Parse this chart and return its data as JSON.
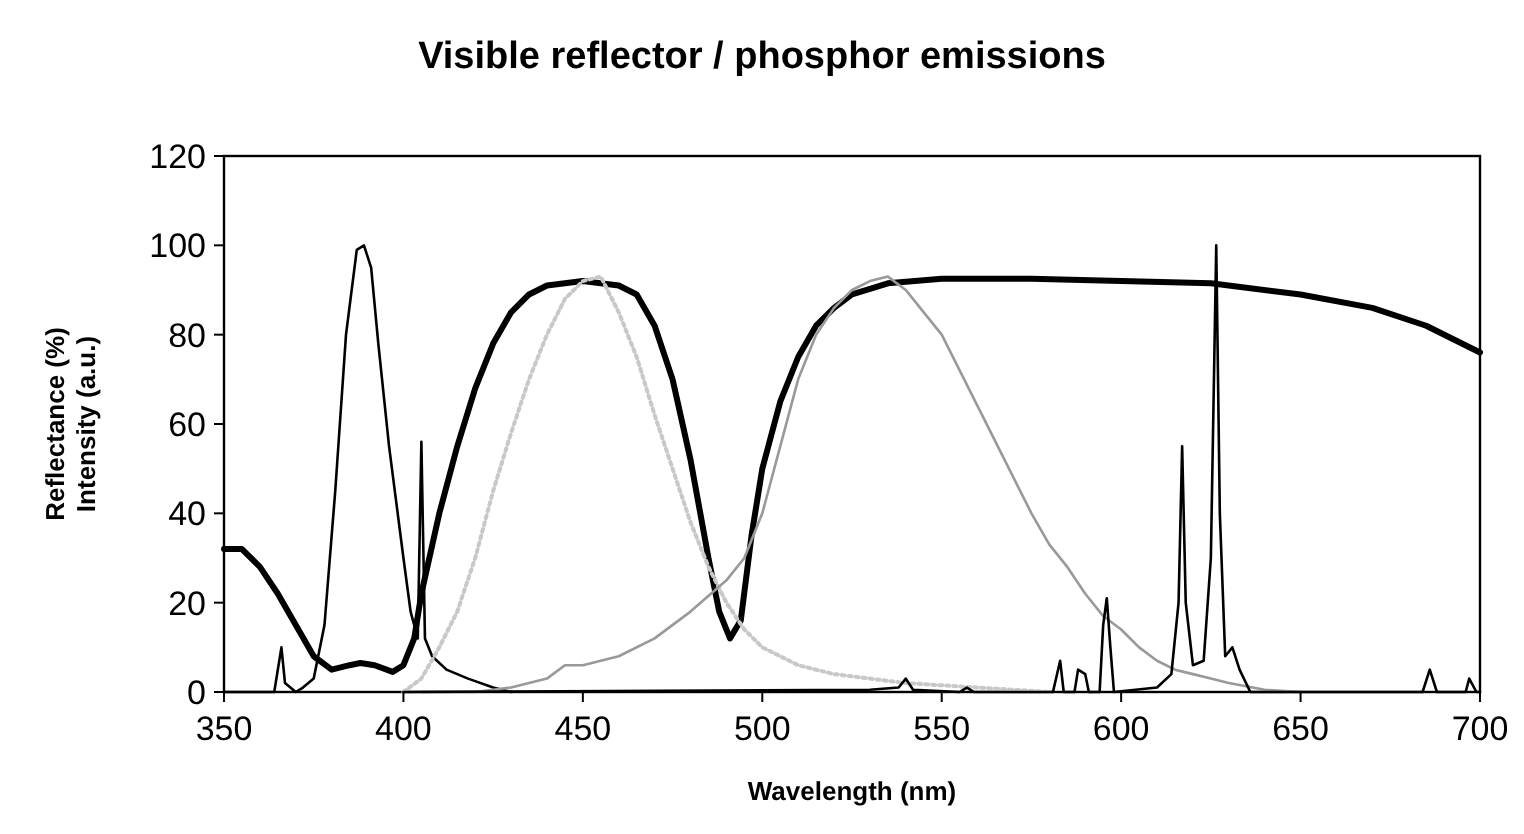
{
  "chart_data": {
    "type": "line",
    "title": "Visible reflector / phosphor emissions",
    "xlabel": "Wavelength (nm)",
    "ylabel": "Reflectance (%)\nIntensity (a.u.)",
    "xlim": [
      350,
      700
    ],
    "xticks": [
      350,
      400,
      450,
      500,
      550,
      600,
      650,
      700
    ],
    "ylim": [
      0,
      120
    ],
    "yticks": [
      0,
      20,
      40,
      60,
      80,
      100,
      120
    ],
    "grid": false,
    "marker": "none",
    "series": [
      {
        "color": "#000000",
        "line_style": "solid",
        "x": [
          350,
          355,
          360,
          365,
          370,
          375,
          380,
          385,
          388,
          392,
          397,
          400,
          403,
          405,
          410,
          415,
          420,
          425,
          430,
          435,
          440,
          450,
          460,
          465,
          470,
          475,
          480,
          485,
          488,
          491,
          494,
          497,
          500,
          505,
          510,
          515,
          520,
          525,
          535,
          550,
          575,
          600,
          625,
          650,
          670,
          685,
          700
        ],
        "values": [
          32,
          32,
          28,
          22,
          15,
          8,
          5,
          6,
          6.5,
          6,
          4.5,
          6,
          12,
          22,
          40,
          55,
          68,
          78,
          85,
          89,
          91,
          92,
          91,
          89,
          82,
          70,
          52,
          30,
          18,
          12,
          16,
          35,
          50,
          65,
          75,
          82,
          86,
          89,
          91.5,
          92.5,
          92.5,
          92,
          91.5,
          89,
          86,
          82,
          76
        ]
      },
      {
        "color": "#000000",
        "line_style": "solid",
        "x": [
          350,
          364,
          366,
          367,
          370,
          372,
          375,
          378,
          381,
          384,
          387,
          389,
          391,
          393,
          396,
          400,
          402,
          404,
          405,
          406,
          408,
          412,
          418,
          425,
          430
        ],
        "values": [
          0,
          0,
          10,
          2,
          0,
          1,
          3,
          15,
          45,
          80,
          99,
          100,
          95,
          78,
          55,
          30,
          18,
          12,
          56,
          12,
          8,
          5,
          3,
          1,
          0
        ]
      },
      {
        "color": "#c8c8c8",
        "line_style": "dotted",
        "x": [
          400,
          405,
          410,
          415,
          420,
          425,
          430,
          435,
          440,
          445,
          450,
          455,
          460,
          465,
          470,
          475,
          480,
          485,
          490,
          495,
          500,
          510,
          520,
          530,
          540,
          560,
          580
        ],
        "values": [
          0,
          3,
          10,
          18,
          30,
          45,
          58,
          70,
          80,
          88,
          92,
          93,
          85,
          75,
          62,
          50,
          38,
          28,
          20,
          14,
          10,
          6,
          4,
          3,
          2,
          1,
          0
        ]
      },
      {
        "color": "#999999",
        "line_style": "solid",
        "x": [
          405,
          420,
          430,
          440,
          445,
          450,
          460,
          470,
          480,
          490,
          495,
          500,
          505,
          510,
          515,
          520,
          525,
          530,
          535,
          540,
          545,
          550,
          555,
          560,
          565,
          570,
          575,
          580,
          585,
          590,
          595,
          600,
          605,
          610,
          615,
          620,
          625,
          630,
          640,
          650
        ],
        "values": [
          0,
          0,
          1,
          3,
          6,
          6,
          8,
          12,
          18,
          25,
          30,
          40,
          55,
          70,
          80,
          86,
          90,
          92,
          93,
          90,
          85,
          80,
          72,
          64,
          56,
          48,
          40,
          33,
          28,
          22,
          17,
          14,
          10,
          7,
          5,
          4,
          3,
          2,
          0.5,
          0
        ]
      },
      {
        "color": "#000000",
        "line_style": "solid",
        "x": [
          400,
          530,
          538,
          540,
          542,
          555,
          557,
          559,
          581,
          583,
          584,
          587,
          588,
          590,
          591,
          594,
          595,
          596,
          597,
          598,
          610,
          614,
          616,
          617,
          618,
          620,
          623,
          625,
          626.5,
          627.5,
          629,
          631,
          633,
          636,
          684,
          686,
          688,
          696,
          697,
          699,
          700
        ],
        "values": [
          0,
          0.5,
          1,
          3,
          0.5,
          0,
          1,
          0,
          0,
          7,
          0,
          0,
          5,
          4,
          0,
          0,
          15,
          21,
          10,
          0,
          1,
          4,
          20,
          55,
          20,
          6,
          7,
          30,
          100,
          40,
          8,
          10,
          5,
          0,
          0,
          5,
          0,
          0,
          3,
          0,
          0
        ]
      }
    ]
  }
}
